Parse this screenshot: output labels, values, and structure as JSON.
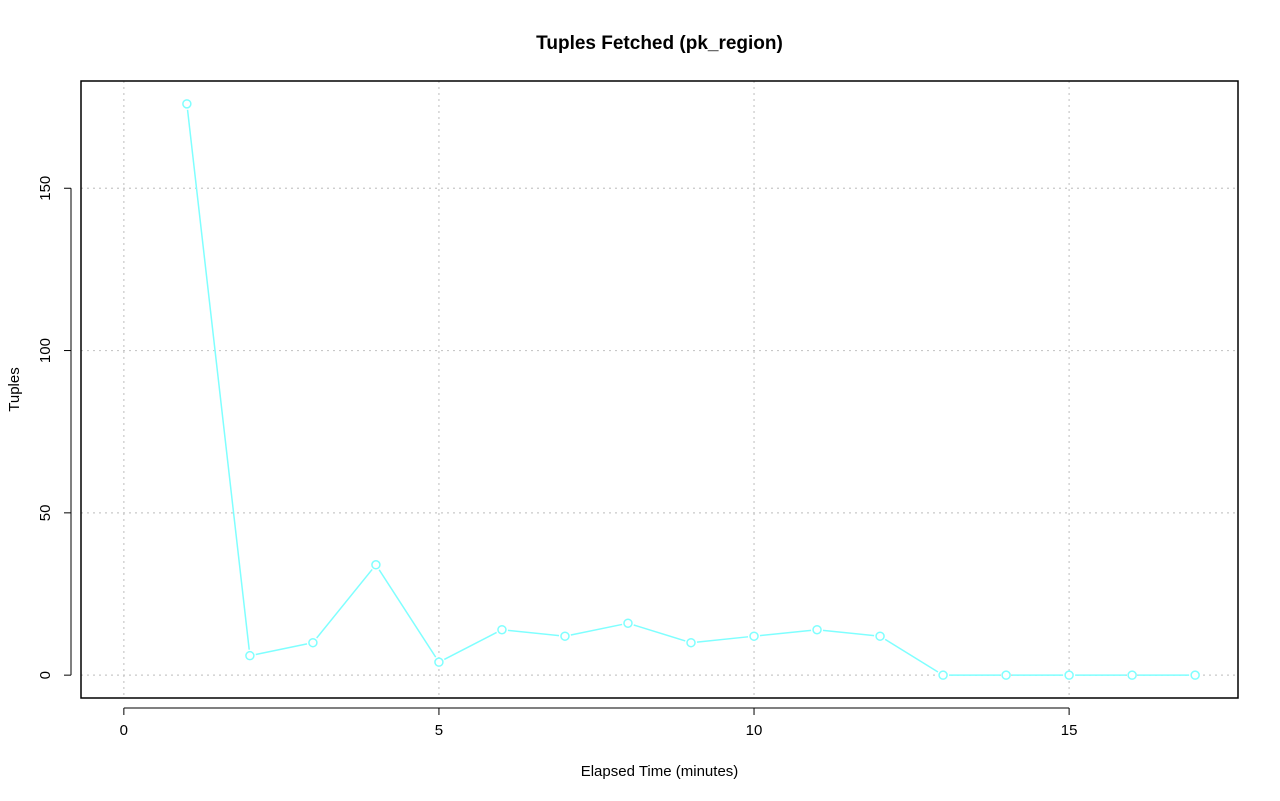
{
  "chart_data": {
    "type": "line",
    "title": "Tuples Fetched (pk_region)",
    "xlabel": "Elapsed Time (minutes)",
    "ylabel": "Tuples",
    "xlim": [
      -0.68,
      17.68
    ],
    "ylim": [
      -7.04,
      183.04
    ],
    "xticks": [
      0,
      5,
      10,
      15
    ],
    "yticks": [
      0,
      50,
      100,
      150
    ],
    "grid": true,
    "series": [
      {
        "color": "#7fffff",
        "x": [
          1,
          2,
          3,
          4,
          5,
          6,
          7,
          8,
          9,
          10,
          11,
          12,
          13,
          14,
          15,
          16,
          17
        ],
        "y": [
          176,
          6,
          10,
          34,
          4,
          14,
          12,
          16,
          10,
          12,
          14,
          12,
          0,
          0,
          0,
          0,
          0
        ]
      }
    ]
  }
}
